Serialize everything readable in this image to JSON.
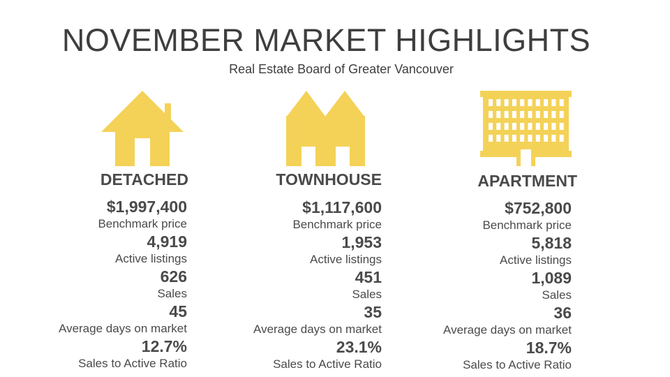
{
  "header": {
    "title": "NOVEMBER MARKET HIGHLIGHTS",
    "subtitle": "Real Estate Board of Greater Vancouver"
  },
  "colors": {
    "icon": "#f4d258",
    "text": "#4a4a4a"
  },
  "columns": [
    {
      "category": "DETACHED",
      "icon": "house-icon",
      "stats": [
        {
          "value": "$1,997,400",
          "label": "Benchmark price"
        },
        {
          "value": "4,919",
          "label": "Active listings"
        },
        {
          "value": "626",
          "label": "Sales"
        },
        {
          "value": "45",
          "label": "Average days on market"
        },
        {
          "value": "12.7%",
          "label": "Sales to Active Ratio"
        }
      ]
    },
    {
      "category": "TOWNHOUSE",
      "icon": "townhouse-icon",
      "stats": [
        {
          "value": "$1,117,600",
          "label": "Benchmark price"
        },
        {
          "value": "1,953",
          "label": "Active listings"
        },
        {
          "value": "451",
          "label": "Sales"
        },
        {
          "value": "35",
          "label": "Average days on market"
        },
        {
          "value": "23.1%",
          "label": "Sales to Active Ratio"
        }
      ]
    },
    {
      "category": "APARTMENT",
      "icon": "apartment-icon",
      "stats": [
        {
          "value": "$752,800",
          "label": "Benchmark price"
        },
        {
          "value": "5,818",
          "label": "Active listings"
        },
        {
          "value": "1,089",
          "label": "Sales"
        },
        {
          "value": "36",
          "label": "Average days on market"
        },
        {
          "value": "18.7%",
          "label": "Sales to Active Ratio"
        }
      ]
    }
  ]
}
